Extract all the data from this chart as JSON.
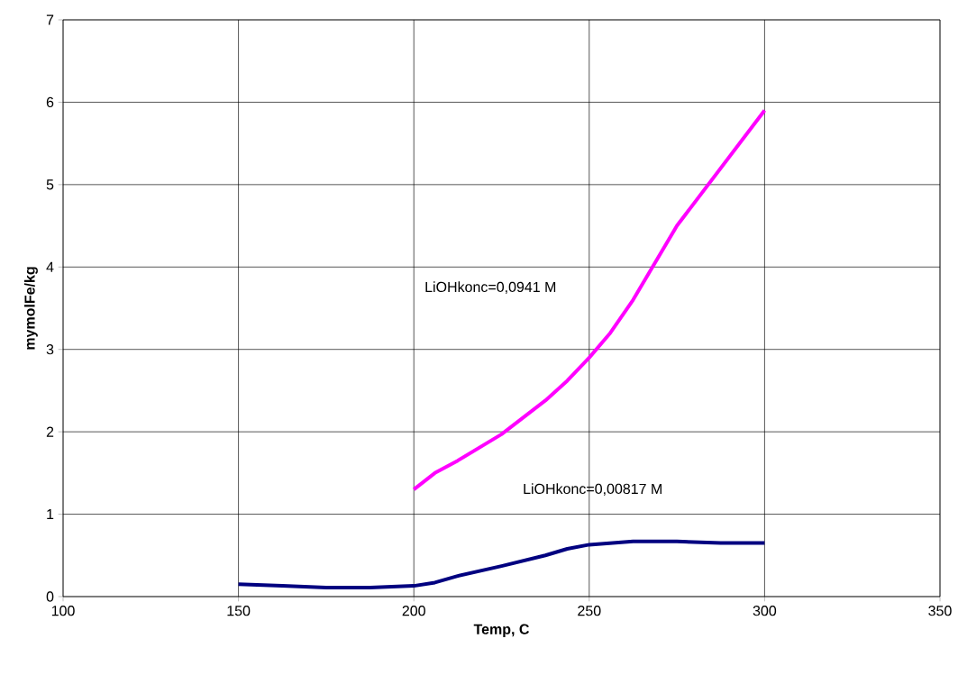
{
  "chart_data": {
    "type": "line",
    "xlabel": "Temp, C",
    "ylabel": "mymolFe/kg",
    "xlim": [
      100,
      350
    ],
    "xticks": [
      100,
      150,
      200,
      250,
      300,
      350
    ],
    "ylim": [
      0,
      7
    ],
    "yticks": [
      0,
      1,
      2,
      3,
      4,
      5,
      6,
      7
    ],
    "annotations": [
      "LiOHkonc=0,0941 M",
      "LiOHkonc=0,00817 M"
    ],
    "grid": true,
    "marker": "none",
    "line_style": "solid",
    "series": [
      {
        "color": "#ff00ff",
        "x": [
          200,
          206,
          212.5,
          225,
          237.5,
          243.75,
          250,
          256,
          262.5,
          275,
          287.5,
          300
        ],
        "values": [
          1.3,
          1.5,
          1.65,
          1.97,
          2.38,
          2.62,
          2.9,
          3.2,
          3.6,
          4.5,
          5.2,
          5.9
        ]
      },
      {
        "color": "#000080",
        "x": [
          150,
          162.5,
          175,
          187.5,
          200,
          206,
          212.5,
          225,
          237.5,
          243.75,
          250,
          262.5,
          275,
          287.5,
          300
        ],
        "values": [
          0.15,
          0.13,
          0.11,
          0.11,
          0.13,
          0.17,
          0.25,
          0.37,
          0.5,
          0.58,
          0.63,
          0.67,
          0.67,
          0.65,
          0.65
        ]
      }
    ]
  }
}
